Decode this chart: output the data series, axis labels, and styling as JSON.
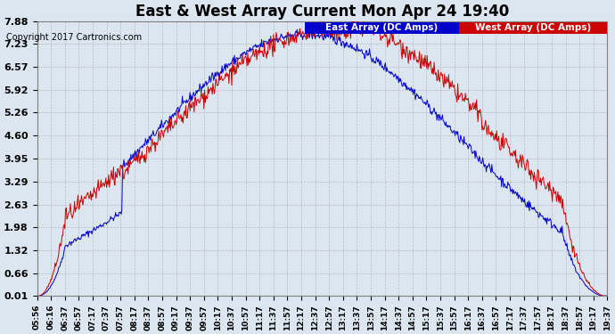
{
  "title": "East & West Array Current Mon Apr 24 19:40",
  "copyright": "Copyright 2017 Cartronics.com",
  "legend_east": "East Array (DC Amps)",
  "legend_west": "West Array (DC Amps)",
  "east_color": "#0000cc",
  "west_color": "#cc0000",
  "legend_east_bg": "#0000cc",
  "legend_west_bg": "#cc0000",
  "bg_color": "#dce6f0",
  "plot_bg": "#dce6f0",
  "grid_color": "#aaaaaa",
  "yticks": [
    0.01,
    0.66,
    1.32,
    1.98,
    2.63,
    3.29,
    3.95,
    4.6,
    5.26,
    5.92,
    6.57,
    7.23,
    7.88
  ],
  "ymin": 0.01,
  "ymax": 7.88,
  "time_labels": [
    "05:56",
    "06:16",
    "06:37",
    "06:57",
    "07:17",
    "07:37",
    "07:57",
    "08:17",
    "08:37",
    "08:57",
    "09:17",
    "09:37",
    "09:57",
    "10:17",
    "10:37",
    "10:57",
    "11:17",
    "11:37",
    "11:57",
    "12:17",
    "12:37",
    "12:57",
    "13:17",
    "13:37",
    "13:57",
    "14:17",
    "14:37",
    "14:57",
    "15:17",
    "15:37",
    "15:57",
    "16:17",
    "16:37",
    "16:57",
    "17:17",
    "17:37",
    "17:57",
    "18:17",
    "18:37",
    "18:57",
    "19:17",
    "19:37"
  ]
}
